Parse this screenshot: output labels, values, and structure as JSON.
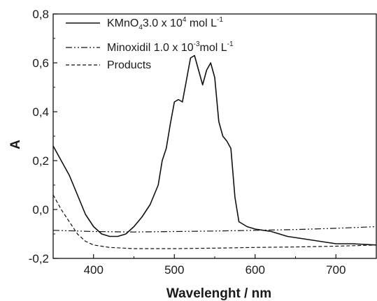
{
  "chart_data": {
    "type": "line",
    "title": "",
    "xlabel": "Wavelenght / nm",
    "ylabel": "A",
    "xlim": [
      350,
      750
    ],
    "ylim": [
      -0.2,
      0.8
    ],
    "x_ticks": [
      400,
      500,
      600,
      700
    ],
    "y_ticks": [
      -0.2,
      0.0,
      0.2,
      0.4,
      0.6,
      0.8
    ],
    "x_tick_labels": [
      "400",
      "500",
      "600",
      "700"
    ],
    "y_tick_labels": [
      "-0,2",
      "0,0",
      "0,2",
      "0,4",
      "0,6",
      "0,8"
    ],
    "grid": false,
    "legend_position": "top-left",
    "legend": [
      {
        "base": "KMnO",
        "sub": "4",
        "mid": "3.0 x 10",
        "sup": "4",
        "tail": " mol L",
        "sup2": "-1"
      },
      {
        "base": "Minoxidil 1.0 x 10",
        "sub": "",
        "mid": "",
        "sup": "-3",
        "tail": "mol L",
        "sup2": "-1"
      },
      {
        "base": "Products",
        "sub": "",
        "mid": "",
        "sup": "",
        "tail": "",
        "sup2": ""
      }
    ],
    "series": [
      {
        "name": "KMnO4 3.0 x 10^4 mol L^-1",
        "style": "solid",
        "color": "#111111",
        "x": [
          350,
          360,
          370,
          380,
          390,
          400,
          410,
          420,
          430,
          440,
          450,
          460,
          470,
          480,
          485,
          490,
          495,
          500,
          505,
          510,
          515,
          520,
          525,
          530,
          535,
          540,
          545,
          550,
          555,
          560,
          565,
          570,
          575,
          580,
          590,
          600,
          620,
          640,
          660,
          680,
          700,
          720,
          750
        ],
        "y": [
          0.26,
          0.2,
          0.14,
          0.06,
          -0.02,
          -0.07,
          -0.1,
          -0.11,
          -0.11,
          -0.1,
          -0.07,
          -0.03,
          0.02,
          0.1,
          0.2,
          0.25,
          0.35,
          0.44,
          0.45,
          0.44,
          0.53,
          0.62,
          0.63,
          0.57,
          0.51,
          0.57,
          0.6,
          0.54,
          0.36,
          0.3,
          0.28,
          0.25,
          0.05,
          -0.05,
          -0.07,
          -0.08,
          -0.09,
          -0.11,
          -0.12,
          -0.13,
          -0.14,
          -0.14,
          -0.145
        ]
      },
      {
        "name": "Minoxidil 1.0 x 10^-3 mol L^-1",
        "style": "dashdotdot",
        "color": "#111111",
        "x": [
          350,
          400,
          450,
          500,
          550,
          600,
          650,
          700,
          750
        ],
        "y": [
          -0.085,
          -0.09,
          -0.092,
          -0.09,
          -0.088,
          -0.085,
          -0.082,
          -0.077,
          -0.07
        ]
      },
      {
        "name": "Products",
        "style": "dashed",
        "color": "#111111",
        "x": [
          350,
          360,
          370,
          380,
          390,
          400,
          420,
          450,
          500,
          550,
          600,
          650,
          700,
          750
        ],
        "y": [
          0.06,
          0.0,
          -0.05,
          -0.1,
          -0.13,
          -0.145,
          -0.155,
          -0.16,
          -0.16,
          -0.158,
          -0.155,
          -0.153,
          -0.15,
          -0.145
        ]
      }
    ]
  }
}
